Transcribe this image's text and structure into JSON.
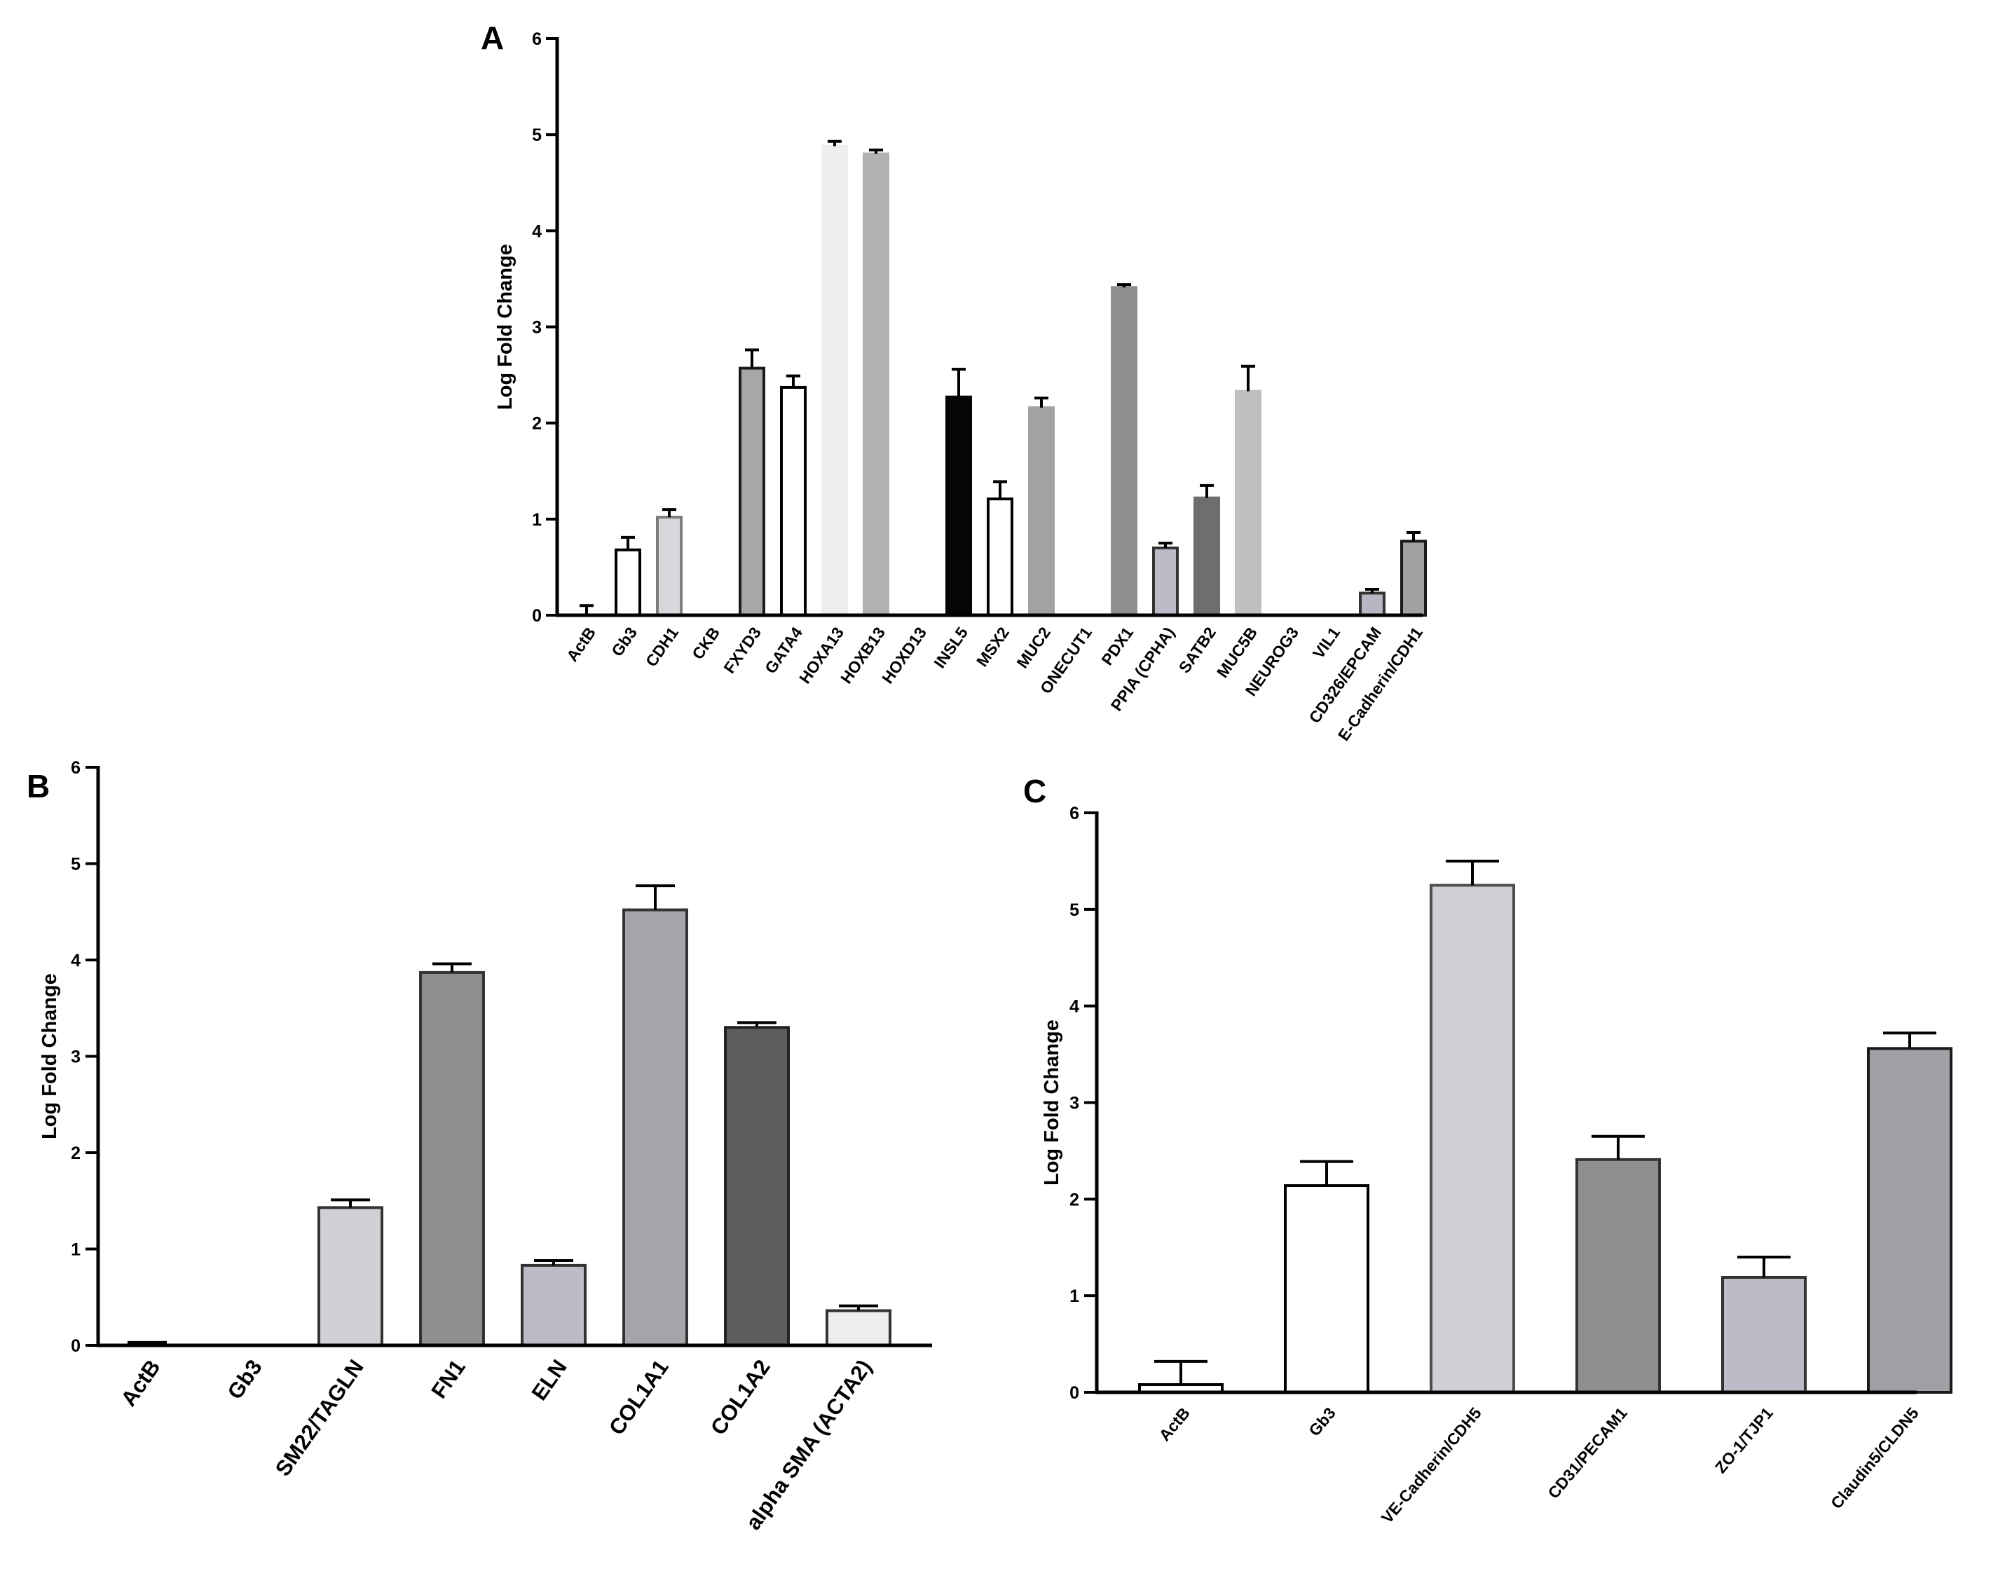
{
  "chart_data": [
    {
      "id": "A",
      "type": "bar",
      "panel_label": "A",
      "ylabel": "Log Fold Change",
      "xlabel": "",
      "ylim": [
        0,
        6
      ],
      "yticks": [
        "0",
        "1",
        "2",
        "3",
        "4",
        "5",
        "6"
      ],
      "categories": [
        "ActB",
        "Gb3",
        "CDH1",
        "CKB",
        "FXYD3",
        "GATA4",
        "HOXA13",
        "HOXB13",
        "HOXD13",
        "INSL5",
        "MSX2",
        "MUC2",
        "ONECUT1",
        "PDX1",
        "PPIA (CPHA)",
        "SATB2",
        "MUC5B",
        "NEUROG3",
        "VIL1",
        "CD326/EPCAM",
        "E-Cadherin/CDH1"
      ],
      "values": [
        0,
        0.68,
        1.02,
        0,
        2.57,
        2.37,
        4.88,
        4.8,
        0,
        2.27,
        1.21,
        2.16,
        0,
        3.41,
        0.7,
        1.22,
        2.33,
        0,
        0,
        0.23,
        0.77
      ],
      "errors": [
        0.1,
        0.13,
        0.08,
        0,
        0.19,
        0.12,
        0.05,
        0.04,
        0,
        0.29,
        0.18,
        0.1,
        0,
        0.03,
        0.05,
        0.13,
        0.26,
        0,
        0,
        0.04,
        0.09
      ],
      "fills": [
        "#ffffff",
        "#ffffff",
        "#d8d8dc",
        "#ffffff",
        "#a7a7aa",
        "#ffffff",
        "#eeeeef",
        "#b1b1b3",
        "#ffffff",
        "#050505",
        "#ffffff",
        "#a2a2a5",
        "#ffffff",
        "#8f8f91",
        "#bcbcc8",
        "#6e6e70",
        "#bfbfc2",
        "#ffffff",
        "#ffffff",
        "#b7b7c3",
        "#a1a1a4"
      ],
      "strokes": [
        "#000000",
        "#000000",
        "#7d7d7d",
        "#000000",
        "#1a1a1a",
        "#000000",
        "#eeeeef",
        "#b1b1b3",
        "#000000",
        "#050505",
        "#000000",
        "#a2a2a5",
        "#000000",
        "#8f8f91",
        "#333333",
        "#6e6e70",
        "#bfbfc2",
        "#000000",
        "#000000",
        "#333333",
        "#1a1a1a"
      ]
    },
    {
      "id": "B",
      "type": "bar",
      "panel_label": "B",
      "ylabel": "Log Fold Change",
      "xlabel": "",
      "ylim": [
        0,
        6
      ],
      "yticks": [
        "0",
        "1",
        "2",
        "3",
        "4",
        "5",
        "6"
      ],
      "categories": [
        "ActB",
        "Gb3",
        "SM22/TAGLN",
        "FN1",
        "ELN",
        "COL1A1",
        "COL1A2",
        "alpha SMA (ACTA2)"
      ],
      "values": [
        0,
        0,
        1.43,
        3.87,
        0.83,
        4.52,
        3.3,
        0.36
      ],
      "errors": [
        0.03,
        0,
        0.08,
        0.09,
        0.05,
        0.25,
        0.05,
        0.05
      ],
      "fills": [
        "#ffffff",
        "#ffffff",
        "#d1d1d5",
        "#8e8e90",
        "#bcbcc8",
        "#a4a4a9",
        "#5d5d5f",
        "#eeeeee"
      ],
      "strokes": [
        "#000000",
        "#000000",
        "#333333",
        "#333333",
        "#333333",
        "#333333",
        "#222222",
        "#333333"
      ]
    },
    {
      "id": "C",
      "type": "bar",
      "panel_label": "C",
      "ylabel": "Log Fold Change",
      "xlabel": "",
      "ylim": [
        0,
        6
      ],
      "yticks": [
        "0",
        "1",
        "2",
        "3",
        "4",
        "5",
        "6"
      ],
      "categories": [
        "ActB",
        "Gb3",
        "VE-Cadherin/CDH5",
        "CD31/PECAM1",
        "ZO-1/TJP1",
        "Claudin5/CLDN5"
      ],
      "values": [
        0.08,
        2.14,
        5.25,
        2.41,
        1.19,
        3.56
      ],
      "errors": [
        0.24,
        0.25,
        0.25,
        0.24,
        0.21,
        0.16
      ],
      "fills": [
        "#ffffff",
        "#ffffff",
        "#d0d0d4",
        "#8f8f91",
        "#bcbcc8",
        "#a1a1a5"
      ],
      "strokes": [
        "#000000",
        "#000000",
        "#4d4d4d",
        "#333333",
        "#333333",
        "#1a1a1a"
      ]
    }
  ]
}
